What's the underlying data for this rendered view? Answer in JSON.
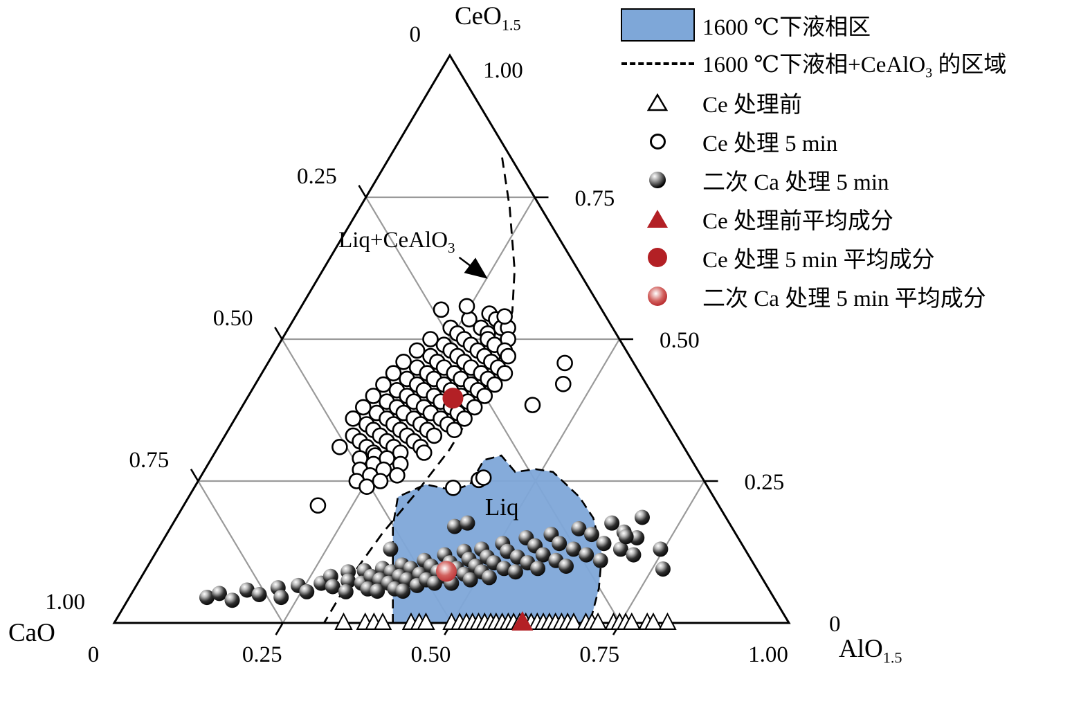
{
  "colors": {
    "region_blue": "#7ea7d8",
    "marker_red": "#b32025",
    "grid_gray": "#9a9a9a",
    "line_black": "#000000"
  },
  "axis_labels": {
    "top_base": "CeO",
    "top_sub": "1.5",
    "bottom_left": "CaO",
    "bottom_right_base": "AlO",
    "bottom_right_sub": "1.5"
  },
  "legend": {
    "items": [
      {
        "label": "1600 ℃下液相区"
      },
      {
        "label_pre": "1600 ℃下液相+CeAlO",
        "label_sub": "3",
        "label_post": " 的区域"
      },
      {
        "label": "Ce 处理前"
      },
      {
        "label": "Ce 处理 5 min"
      },
      {
        "label": "二次 Ca 处理 5 min"
      },
      {
        "label": "Ce 处理前平均成分"
      },
      {
        "label": "Ce 处理 5 min 平均成分"
      },
      {
        "label": "二次 Ca 处理 5 min 平均成分"
      }
    ]
  },
  "chart_data": {
    "type": "scatter",
    "diagram": "ternary",
    "components": {
      "top": "CeO1.5",
      "bottom_left": "CaO",
      "bottom_right": "AlO1.5"
    },
    "point_format": "Each point is [x_AlO1.5, x_CeO1.5]; x_CaO = 1 - x_AlO1.5 - x_CeO1.5",
    "grid_step": 0.25,
    "axes": {
      "left": {
        "ticks": [
          {
            "v": 0,
            "label": "0"
          },
          {
            "v": 0.25,
            "label": "0.25"
          },
          {
            "v": 0.5,
            "label": "0.50"
          },
          {
            "v": 0.75,
            "label": "0.75"
          },
          {
            "v": 1,
            "label": "1.00"
          }
        ]
      },
      "bottom": {
        "ticks": [
          {
            "v": 0,
            "label": "0"
          },
          {
            "v": 0.25,
            "label": "0.25"
          },
          {
            "v": 0.5,
            "label": "0.50"
          },
          {
            "v": 0.75,
            "label": "0.75"
          },
          {
            "v": 1,
            "label": "1.00"
          }
        ]
      },
      "right": {
        "ticks": [
          {
            "v": 1,
            "label": "1.00"
          },
          {
            "v": 0.75,
            "label": "0.75"
          },
          {
            "v": 0.5,
            "label": "0.50"
          },
          {
            "v": 0.25,
            "label": "0.25"
          },
          {
            "v": 0,
            "label": "0"
          }
        ]
      }
    },
    "liquid_region": {
      "name": "1600 ℃下液相区",
      "points": [
        [
          0.413,
          0
        ],
        [
          0.328,
          0.171
        ],
        [
          0.31,
          0.222
        ],
        [
          0.34,
          0.244
        ],
        [
          0.386,
          0.234
        ],
        [
          0.406,
          0.244
        ],
        [
          0.405,
          0.287
        ],
        [
          0.427,
          0.295
        ],
        [
          0.462,
          0.266
        ],
        [
          0.49,
          0.271
        ],
        [
          0.518,
          0.266
        ],
        [
          0.579,
          0.222
        ],
        [
          0.618,
          0.185
        ],
        [
          0.662,
          0.122
        ],
        [
          0.688,
          0.061
        ],
        [
          0.705,
          0
        ]
      ]
    },
    "dashed_boundary": {
      "name": "1600 ℃下液相+CeAlO3 的区域",
      "points": [
        [
          0.167,
          0.82
        ],
        [
          0.222,
          0.732
        ],
        [
          0.284,
          0.622
        ],
        [
          0.317,
          0.549
        ],
        [
          0.34,
          0.463
        ],
        [
          0.346,
          0.384
        ],
        [
          0.345,
          0.305
        ],
        [
          0.333,
          0.226
        ],
        [
          0.319,
          0.159
        ],
        [
          0.311,
          0.085
        ],
        [
          0.311,
          0
        ]
      ]
    },
    "annotations": {
      "liq_label": {
        "text": "Liq",
        "pos": [
          0.48,
          0.19
        ]
      },
      "liq_cealo3_label": {
        "pre": "Liq+CeAlO",
        "sub": "3",
        "pos": [
          0.0895,
          0.662
        ],
        "arrow_from": [
          0.191,
          0.644
        ],
        "arrow_to": [
          0.246,
          0.61
        ]
      }
    },
    "series": [
      {
        "name": "Ce 处理前",
        "marker": "open-triangle",
        "points": [
          [
            0.34,
            0
          ],
          [
            0.372,
            0
          ],
          [
            0.385,
            0
          ],
          [
            0.398,
            0
          ],
          [
            0.44,
            0
          ],
          [
            0.452,
            0
          ],
          [
            0.462,
            0
          ],
          [
            0.5,
            0
          ],
          [
            0.512,
            0
          ],
          [
            0.522,
            0
          ],
          [
            0.531,
            0
          ],
          [
            0.54,
            0
          ],
          [
            0.549,
            0
          ],
          [
            0.558,
            0
          ],
          [
            0.566,
            0
          ],
          [
            0.575,
            0
          ],
          [
            0.584,
            0
          ],
          [
            0.592,
            0
          ],
          [
            0.601,
            0
          ],
          [
            0.61,
            0
          ],
          [
            0.618,
            0
          ],
          [
            0.627,
            0
          ],
          [
            0.636,
            0
          ],
          [
            0.645,
            0
          ],
          [
            0.654,
            0
          ],
          [
            0.663,
            0
          ],
          [
            0.672,
            0
          ],
          [
            0.681,
            0
          ],
          [
            0.699,
            0
          ],
          [
            0.708,
            0
          ],
          [
            0.717,
            0
          ],
          [
            0.74,
            0
          ],
          [
            0.749,
            0
          ],
          [
            0.758,
            0
          ],
          [
            0.767,
            0
          ],
          [
            0.79,
            0
          ],
          [
            0.799,
            0
          ],
          [
            0.82,
            0
          ]
        ]
      },
      {
        "name": "Ce 处理 5 min",
        "marker": "open-circle",
        "points": [
          [
            0.285,
            0.545
          ],
          [
            0.26,
            0.535
          ],
          [
            0.3,
            0.535
          ],
          [
            0.21,
            0.552
          ],
          [
            0.245,
            0.558
          ],
          [
            0.24,
            0.52
          ],
          [
            0.285,
            0.52
          ],
          [
            0.315,
            0.52
          ],
          [
            0.325,
            0.52
          ],
          [
            0.255,
            0.51
          ],
          [
            0.3,
            0.51
          ],
          [
            0.31,
            0.54
          ],
          [
            0.22,
            0.5
          ],
          [
            0.27,
            0.5
          ],
          [
            0.305,
            0.5
          ],
          [
            0.335,
            0.5
          ],
          [
            0.245,
            0.49
          ],
          [
            0.285,
            0.49
          ],
          [
            0.32,
            0.49
          ],
          [
            0.21,
            0.48
          ],
          [
            0.26,
            0.48
          ],
          [
            0.3,
            0.48
          ],
          [
            0.34,
            0.48
          ],
          [
            0.235,
            0.47
          ],
          [
            0.275,
            0.47
          ],
          [
            0.315,
            0.47
          ],
          [
            0.35,
            0.47
          ],
          [
            0.2,
            0.46
          ],
          [
            0.25,
            0.46
          ],
          [
            0.29,
            0.46
          ],
          [
            0.33,
            0.46
          ],
          [
            0.44,
            0.458
          ],
          [
            0.225,
            0.45
          ],
          [
            0.265,
            0.45
          ],
          [
            0.305,
            0.45
          ],
          [
            0.345,
            0.45
          ],
          [
            0.195,
            0.44
          ],
          [
            0.245,
            0.44
          ],
          [
            0.285,
            0.44
          ],
          [
            0.325,
            0.44
          ],
          [
            0.36,
            0.44
          ],
          [
            0.22,
            0.43
          ],
          [
            0.26,
            0.43
          ],
          [
            0.3,
            0.43
          ],
          [
            0.34,
            0.43
          ],
          [
            0.456,
            0.421
          ],
          [
            0.19,
            0.42
          ],
          [
            0.24,
            0.42
          ],
          [
            0.28,
            0.42
          ],
          [
            0.32,
            0.42
          ],
          [
            0.355,
            0.42
          ],
          [
            0.215,
            0.41
          ],
          [
            0.255,
            0.41
          ],
          [
            0.295,
            0.41
          ],
          [
            0.335,
            0.41
          ],
          [
            0.185,
            0.4
          ],
          [
            0.235,
            0.4
          ],
          [
            0.275,
            0.4
          ],
          [
            0.315,
            0.4
          ],
          [
            0.35,
            0.4
          ],
          [
            0.21,
            0.39
          ],
          [
            0.25,
            0.39
          ],
          [
            0.29,
            0.39
          ],
          [
            0.33,
            0.39
          ],
          [
            0.429,
            0.384
          ],
          [
            0.18,
            0.38
          ],
          [
            0.23,
            0.38
          ],
          [
            0.27,
            0.38
          ],
          [
            0.31,
            0.38
          ],
          [
            0.345,
            0.38
          ],
          [
            0.205,
            0.37
          ],
          [
            0.245,
            0.37
          ],
          [
            0.285,
            0.37
          ],
          [
            0.325,
            0.37
          ],
          [
            0.175,
            0.36
          ],
          [
            0.225,
            0.36
          ],
          [
            0.265,
            0.36
          ],
          [
            0.305,
            0.36
          ],
          [
            0.34,
            0.36
          ],
          [
            0.2,
            0.35
          ],
          [
            0.24,
            0.35
          ],
          [
            0.28,
            0.35
          ],
          [
            0.32,
            0.35
          ],
          [
            0.215,
            0.34
          ],
          [
            0.255,
            0.34
          ],
          [
            0.295,
            0.34
          ],
          [
            0.335,
            0.34
          ],
          [
            0.19,
            0.33
          ],
          [
            0.23,
            0.33
          ],
          [
            0.27,
            0.33
          ],
          [
            0.31,
            0.33
          ],
          [
            0.205,
            0.32
          ],
          [
            0.245,
            0.32
          ],
          [
            0.285,
            0.32
          ],
          [
            0.18,
            0.31
          ],
          [
            0.22,
            0.31
          ],
          [
            0.26,
            0.31
          ],
          [
            0.3,
            0.31
          ],
          [
            0.235,
            0.3
          ],
          [
            0.275,
            0.3
          ],
          [
            0.24,
            0.295
          ],
          [
            0.31,
            0.3
          ],
          [
            0.22,
            0.29
          ],
          [
            0.26,
            0.29
          ],
          [
            0.245,
            0.28
          ],
          [
            0.285,
            0.28
          ],
          [
            0.23,
            0.27
          ],
          [
            0.265,
            0.27
          ],
          [
            0.25,
            0.26
          ],
          [
            0.29,
            0.26
          ],
          [
            0.235,
            0.25
          ],
          [
            0.27,
            0.25
          ],
          [
            0.415,
            0.252
          ],
          [
            0.255,
            0.24
          ],
          [
            0.384,
            0.238
          ],
          [
            0.42,
            0.256
          ],
          [
            0.199,
            0.207
          ]
        ]
      },
      {
        "name": "二次 Ca 处理 5 min",
        "marker": "black-ball",
        "points": [
          [
            0.115,
            0.045
          ],
          [
            0.13,
            0.052
          ],
          [
            0.155,
            0.04
          ],
          [
            0.168,
            0.058
          ],
          [
            0.19,
            0.05
          ],
          [
            0.212,
            0.062
          ],
          [
            0.225,
            0.045
          ],
          [
            0.24,
            0.066
          ],
          [
            0.258,
            0.055
          ],
          [
            0.272,
            0.07
          ],
          [
            0.28,
            0.082
          ],
          [
            0.292,
            0.064
          ],
          [
            0.302,
            0.09
          ],
          [
            0.31,
            0.074
          ],
          [
            0.316,
            0.055
          ],
          [
            0.325,
            0.092
          ],
          [
            0.332,
            0.07
          ],
          [
            0.34,
            0.082
          ],
          [
            0.346,
            0.06
          ],
          [
            0.35,
            0.096
          ],
          [
            0.345,
            0.13
          ],
          [
            0.356,
            0.076
          ],
          [
            0.362,
            0.056
          ],
          [
            0.366,
            0.09
          ],
          [
            0.372,
            0.07
          ],
          [
            0.376,
            0.102
          ],
          [
            0.382,
            0.082
          ],
          [
            0.386,
            0.06
          ],
          [
            0.392,
            0.096
          ],
          [
            0.396,
            0.076
          ],
          [
            0.4,
            0.056
          ],
          [
            0.405,
            0.11
          ],
          [
            0.41,
            0.086
          ],
          [
            0.416,
            0.066
          ],
          [
            0.42,
            0.1
          ],
          [
            0.425,
            0.076
          ],
          [
            0.43,
            0.12
          ],
          [
            0.435,
            0.09
          ],
          [
            0.44,
            0.07
          ],
          [
            0.445,
            0.106
          ],
          [
            0.45,
            0.082
          ],
          [
            0.456,
            0.126
          ],
          [
            0.46,
            0.096
          ],
          [
            0.465,
            0.07
          ],
          [
            0.47,
            0.112
          ],
          [
            0.476,
            0.086
          ],
          [
            0.48,
            0.13
          ],
          [
            0.486,
            0.1
          ],
          [
            0.49,
            0.076
          ],
          [
            0.495,
            0.116
          ],
          [
            0.5,
            0.09
          ],
          [
            0.42,
            0.17
          ],
          [
            0.436,
            0.176
          ],
          [
            0.506,
            0.14
          ],
          [
            0.51,
            0.106
          ],
          [
            0.516,
            0.08
          ],
          [
            0.52,
            0.126
          ],
          [
            0.53,
            0.096
          ],
          [
            0.536,
            0.15
          ],
          [
            0.54,
            0.116
          ],
          [
            0.55,
            0.09
          ],
          [
            0.556,
            0.136
          ],
          [
            0.56,
            0.106
          ],
          [
            0.57,
            0.156
          ],
          [
            0.576,
            0.12
          ],
          [
            0.58,
            0.096
          ],
          [
            0.59,
            0.14
          ],
          [
            0.6,
            0.11
          ],
          [
            0.606,
            0.166
          ],
          [
            0.616,
            0.13
          ],
          [
            0.62,
            0.1
          ],
          [
            0.63,
            0.156
          ],
          [
            0.64,
            0.12
          ],
          [
            0.65,
            0.176
          ],
          [
            0.656,
            0.14
          ],
          [
            0.666,
            0.11
          ],
          [
            0.676,
            0.16
          ],
          [
            0.686,
            0.13
          ],
          [
            0.69,
            0.186
          ],
          [
            0.7,
            0.15
          ],
          [
            0.71,
            0.12
          ],
          [
            0.683,
            0.152
          ],
          [
            0.745,
            0.13
          ],
          [
            0.766,
            0.095
          ]
        ]
      },
      {
        "name": "Ce 处理前平均成分",
        "marker": "red-triangle",
        "points": [
          [
            0.605,
            0
          ]
        ]
      },
      {
        "name": "Ce 处理 5 min 平均成分",
        "marker": "red-circle",
        "points": [
          [
            0.305,
            0.396
          ]
        ]
      },
      {
        "name": "二次 Ca 处理 5 min 平均成分",
        "marker": "red-ball",
        "points": [
          [
            0.447,
            0.091
          ]
        ]
      }
    ]
  }
}
